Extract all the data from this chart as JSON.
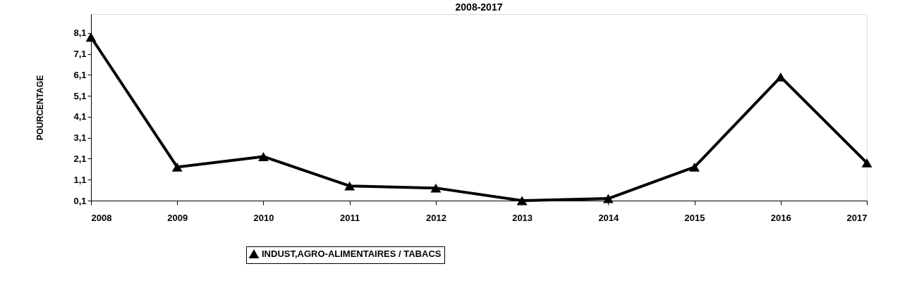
{
  "chart_data": {
    "type": "line",
    "title": "2008-2017",
    "ylabel": "POURCENTAGE",
    "categories": [
      "2008",
      "2009",
      "2010",
      "2011",
      "2012",
      "2013",
      "2014",
      "2015",
      "2016",
      "2017"
    ],
    "series": [
      {
        "name": "INDUST,AGRO-ALIMENTAIRES / TABACS",
        "color": "#000000",
        "values": [
          7.9,
          1.7,
          2.2,
          0.8,
          0.7,
          0.1,
          0.2,
          1.7,
          6.0,
          1.9
        ]
      }
    ],
    "ylim": [
      0.1,
      9.0
    ],
    "yticks": [
      {
        "value": 0.1,
        "label": "0,1"
      },
      {
        "value": 1.1,
        "label": "1,1"
      },
      {
        "value": 2.1,
        "label": "2,1"
      },
      {
        "value": 3.1,
        "label": "3,1"
      },
      {
        "value": 4.1,
        "label": "4,1"
      },
      {
        "value": 5.1,
        "label": "5,1"
      },
      {
        "value": 6.1,
        "label": "6,1"
      },
      {
        "value": 7.1,
        "label": "7,1"
      },
      {
        "value": 8.1,
        "label": "8,1"
      }
    ],
    "grid": false,
    "legend": "bottom",
    "marker": "triangle",
    "line_style": "solid"
  }
}
